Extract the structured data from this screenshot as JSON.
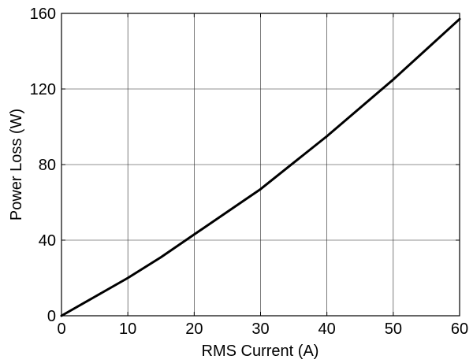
{
  "chart_data": {
    "type": "line",
    "title": "",
    "xlabel": "RMS Current (A)",
    "ylabel": "Power Loss (W)",
    "xlim": [
      0,
      60
    ],
    "ylim": [
      0,
      160
    ],
    "xticks": [
      0,
      10,
      20,
      30,
      40,
      50,
      60
    ],
    "yticks": [
      0,
      40,
      80,
      120,
      160
    ],
    "grid": true,
    "series": [
      {
        "color": "#000000",
        "x": [
          0,
          5,
          10,
          15,
          20,
          25,
          30,
          35,
          40,
          45,
          50,
          55,
          60
        ],
        "y": [
          0,
          10,
          20,
          31,
          43,
          55,
          67,
          81,
          95,
          110,
          125,
          141,
          157
        ]
      }
    ]
  }
}
